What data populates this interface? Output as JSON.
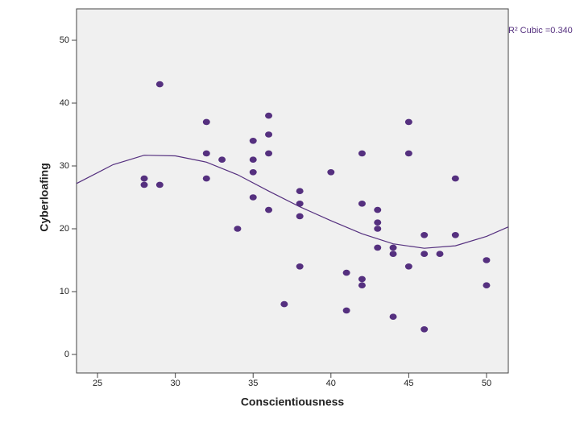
{
  "chart_data": {
    "type": "scatter",
    "x_label": "Conscientiousness",
    "y_label": "Cyberloafing",
    "xlim": [
      23.65,
      51.4
    ],
    "ylim": [
      -2.95,
      55
    ],
    "xticks": [
      25,
      30,
      35,
      40,
      45,
      50
    ],
    "yticks": [
      0,
      10,
      20,
      30,
      40,
      50
    ],
    "background": "#f0f0f0",
    "series": [
      {
        "color": "#55307f",
        "x": [
          28,
          28,
          29,
          29,
          32,
          32,
          32,
          33,
          34,
          35,
          35,
          35,
          35,
          36,
          36,
          36,
          36,
          37,
          38,
          38,
          38,
          38,
          40,
          41,
          41,
          42,
          42,
          42,
          42,
          43,
          43,
          43,
          43,
          44,
          44,
          44,
          45,
          45,
          45,
          46,
          46,
          46,
          47,
          48,
          48,
          50,
          50
        ],
        "values": [
          28,
          27,
          43,
          27,
          37,
          32,
          28,
          31,
          20,
          34,
          31,
          29,
          25,
          38,
          35,
          32,
          23,
          8,
          26,
          24,
          22,
          14,
          29,
          13,
          7,
          32,
          24,
          12,
          11,
          23,
          21,
          20,
          17,
          17,
          16,
          6,
          37,
          32,
          14,
          19,
          16,
          4,
          16,
          28,
          19,
          15,
          11
        ]
      }
    ],
    "fit_line": {
      "name": "R² Cubic =0.340",
      "color": "#55307f",
      "x": [
        23.65,
        26,
        28,
        30,
        32,
        34,
        36,
        38,
        40,
        42,
        44,
        46,
        48,
        50,
        51.4
      ],
      "values": [
        27.2,
        30.2,
        31.7,
        31.6,
        30.6,
        28.6,
        26,
        23.5,
        21.3,
        19.2,
        17.6,
        16.9,
        17.3,
        18.8,
        20.3
      ]
    }
  }
}
